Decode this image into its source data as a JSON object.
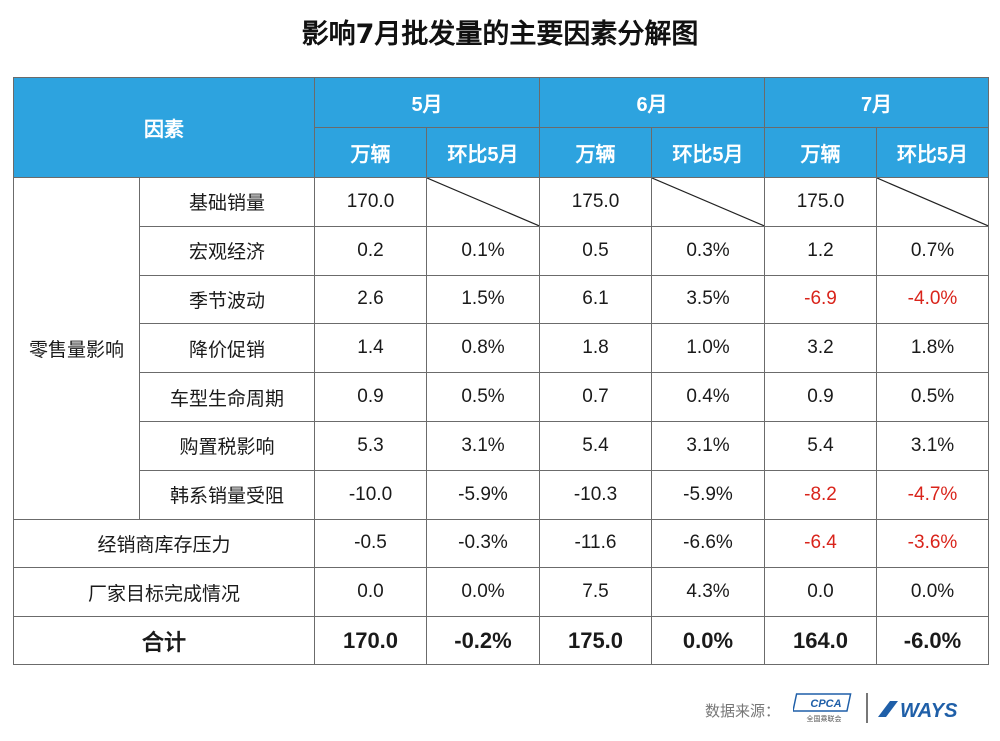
{
  "title": "影响7月批发量的主要因素分解图",
  "header": {
    "factor": "因素",
    "months": [
      "5月",
      "6月",
      "7月"
    ],
    "sub": {
      "units": "万辆",
      "mom": "环比5月"
    }
  },
  "group_label": "零售量影响",
  "rows": [
    {
      "name": "基础销量",
      "m5": "170.0",
      "m5p": "",
      "m6": "175.0",
      "m6p": "",
      "m7": "175.0",
      "m7p": ""
    },
    {
      "name": "宏观经济",
      "m5": "0.2",
      "m5p": "0.1%",
      "m6": "0.5",
      "m6p": "0.3%",
      "m7": "1.2",
      "m7p": "0.7%"
    },
    {
      "name": "季节波动",
      "m5": "2.6",
      "m5p": "1.5%",
      "m6": "6.1",
      "m6p": "3.5%",
      "m7": "-6.9",
      "m7p": "-4.0%"
    },
    {
      "name": "降价促销",
      "m5": "1.4",
      "m5p": "0.8%",
      "m6": "1.8",
      "m6p": "1.0%",
      "m7": "3.2",
      "m7p": "1.8%"
    },
    {
      "name": "车型生命周期",
      "m5": "0.9",
      "m5p": "0.5%",
      "m6": "0.7",
      "m6p": "0.4%",
      "m7": "0.9",
      "m7p": "0.5%"
    },
    {
      "name": "购置税影响",
      "m5": "5.3",
      "m5p": "3.1%",
      "m6": "5.4",
      "m6p": "3.1%",
      "m7": "5.4",
      "m7p": "3.1%"
    },
    {
      "name": "韩系销量受阻",
      "m5": "-10.0",
      "m5p": "-5.9%",
      "m6": "-10.3",
      "m6p": "-5.9%",
      "m7": "-8.2",
      "m7p": "-4.7%"
    },
    {
      "name": "经销商库存压力",
      "m5": "-0.5",
      "m5p": "-0.3%",
      "m6": "-11.6",
      "m6p": "-6.6%",
      "m7": "-6.4",
      "m7p": "-3.6%"
    },
    {
      "name": "厂家目标完成情况",
      "m5": "0.0",
      "m5p": "0.0%",
      "m6": "7.5",
      "m6p": "4.3%",
      "m7": "0.0",
      "m7p": "0.0%"
    }
  ],
  "total": {
    "name": "合计",
    "m5": "170.0",
    "m5p": "-0.2%",
    "m6": "175.0",
    "m6p": "0.0%",
    "m7": "164.0",
    "m7p": "-6.0%"
  },
  "colors": {
    "header_bg": "#2da3df",
    "negative": "#d9241b"
  },
  "footer": {
    "source_label": "数据来源：",
    "logo1": "CPCA",
    "logo1_sub": "全国乘联会",
    "logo2": "WAYS"
  }
}
